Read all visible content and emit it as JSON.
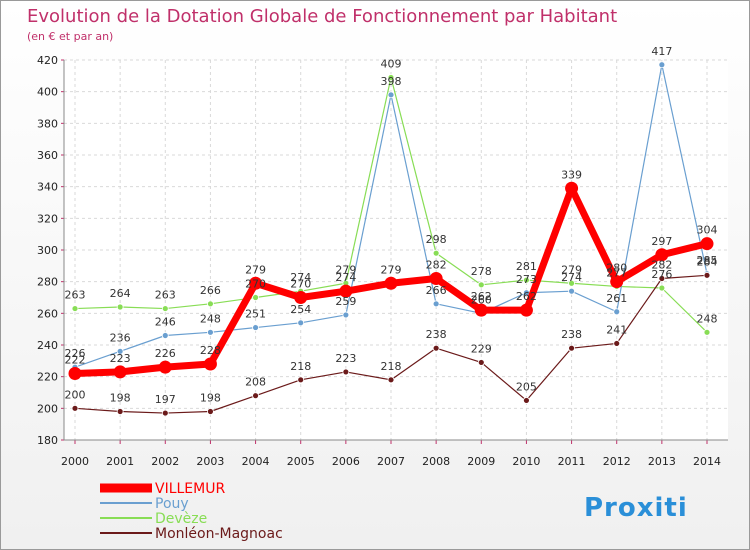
{
  "chart_data": {
    "type": "line",
    "title": "Evolution de la Dotation Globale de Fonctionnement par Habitant",
    "subtitle": "(en € et par an)",
    "xlabel": "",
    "ylabel": "",
    "x": [
      "2000",
      "2001",
      "2002",
      "2003",
      "2004",
      "2005",
      "2006",
      "2007",
      "2008",
      "2009",
      "2010",
      "2011",
      "2012",
      "2013",
      "2014"
    ],
    "ylim": [
      180,
      420
    ],
    "yticks": [
      "180",
      "200",
      "220",
      "240",
      "260",
      "280",
      "300",
      "320",
      "340",
      "360",
      "380",
      "400",
      "420"
    ],
    "grid": true,
    "legend": "bottom-left",
    "series": [
      {
        "name": "VILLEMUR",
        "color": "#ff0000",
        "values": [
          222,
          223,
          226,
          228,
          279,
          270,
          274,
          279,
          282,
          262,
          262,
          339,
          280,
          297,
          304
        ]
      },
      {
        "name": "Pouy",
        "color": "#6a9fd0",
        "values": [
          226,
          236,
          246,
          248,
          251,
          254,
          259,
          398,
          266,
          260,
          273,
          274,
          261,
          417,
          285
        ]
      },
      {
        "name": "Devèze",
        "color": "#88dd55",
        "values": [
          263,
          264,
          263,
          266,
          270,
          274,
          279,
          409,
          298,
          278,
          281,
          279,
          277,
          276,
          248
        ]
      },
      {
        "name": "Monléon-Magnoac",
        "color": "#6b1a1a",
        "values": [
          200,
          198,
          197,
          198,
          208,
          218,
          223,
          218,
          238,
          229,
          205,
          238,
          241,
          282,
          284
        ]
      }
    ],
    "labels": [
      {
        "series": 0,
        "texts": [
          "222",
          "223",
          "226",
          "228",
          "279",
          "270",
          "274",
          "279",
          "282",
          "262",
          "262",
          "339",
          "280",
          "297",
          "304"
        ]
      },
      {
        "series": 1,
        "texts": [
          "226",
          "236",
          "246",
          "248",
          "251",
          "254",
          "259",
          "398",
          "266",
          "260",
          "273",
          "274",
          "261",
          "417",
          "285"
        ]
      },
      {
        "series": 2,
        "texts": [
          "263",
          "264",
          "263",
          "266",
          "270",
          "274",
          "279",
          "409",
          "298",
          "278",
          "281",
          "279",
          "277",
          "276",
          "248"
        ]
      },
      {
        "series": 3,
        "texts": [
          "200",
          "198",
          "197",
          "198",
          "208",
          "218",
          "223",
          "218",
          "238",
          "229",
          "205",
          "238",
          "241",
          "282",
          "284"
        ]
      }
    ]
  },
  "logo": {
    "text": "Proxiti"
  }
}
